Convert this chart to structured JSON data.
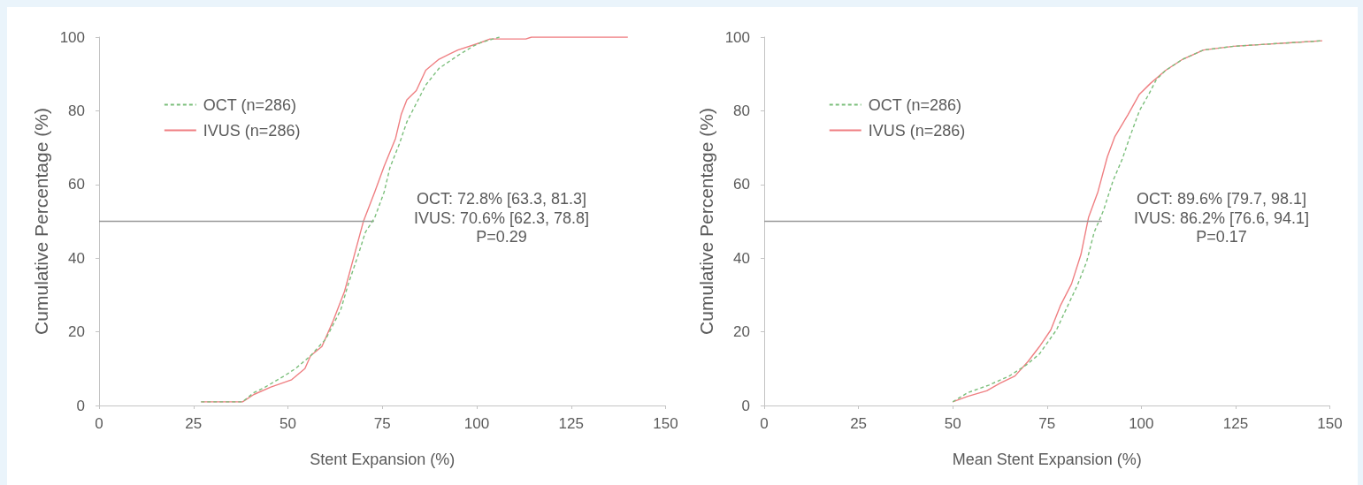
{
  "chart_data": [
    {
      "type": "line",
      "xlabel": "Stent Expansion (%)",
      "ylabel": "Cumulative Percentage (%)",
      "xlim": [
        0,
        150
      ],
      "ylim": [
        0,
        100
      ],
      "xticks": [
        0,
        25,
        50,
        75,
        100,
        125,
        150
      ],
      "yticks": [
        0,
        20,
        40,
        60,
        80,
        100
      ],
      "legend": "top left",
      "marker": "none",
      "annotations": [
        "OCT: 72.8% [63.3, 81.3]",
        "IVUS: 70.6% [62.3, 78.8]",
        "P=0.29"
      ],
      "series": [
        {
          "name": "OCT (n=286)",
          "color": "#7cbf7c",
          "line_style": "dashed",
          "x": [
            27,
            38,
            41,
            44,
            49,
            52,
            56,
            60,
            64,
            66,
            68.5,
            70.5,
            73,
            75.5,
            77,
            79.5,
            81.5,
            84,
            86.5,
            90,
            95,
            99,
            101,
            106
          ],
          "values": [
            1,
            1,
            3.5,
            5,
            8,
            10,
            13.5,
            18,
            26,
            33,
            40.5,
            47,
            51,
            58,
            64.5,
            71,
            77,
            82,
            87,
            91.5,
            95,
            97.5,
            98.5,
            100
          ]
        },
        {
          "name": "IVUS (n=286)",
          "color": "#ef7f82",
          "line_style": "solid",
          "x": [
            27,
            38,
            41,
            45.5,
            51,
            54.5,
            56,
            59,
            62,
            65,
            67.5,
            70,
            73,
            75.5,
            78.5,
            80,
            81.5,
            84,
            86.5,
            90,
            95,
            101,
            103.5,
            113,
            114.5,
            140
          ],
          "values": [
            1,
            1,
            3,
            5,
            7,
            10,
            13.5,
            16,
            23,
            31,
            40.5,
            50,
            58,
            65,
            72.5,
            79,
            83,
            85.5,
            91,
            94,
            96.5,
            98.5,
            99.5,
            99.5,
            100,
            100
          ]
        },
        {
          "color": "#999999",
          "line_style": "solid",
          "x": [
            0,
            72.8
          ],
          "values": [
            50,
            50
          ]
        }
      ]
    },
    {
      "type": "line",
      "xlabel": "Mean Stent Expansion (%)",
      "ylabel": "Cumulative Percentage (%)",
      "xlim": [
        0,
        150
      ],
      "ylim": [
        0,
        100
      ],
      "xticks": [
        0,
        25,
        50,
        75,
        100,
        125,
        150
      ],
      "yticks": [
        0,
        20,
        40,
        60,
        80,
        100
      ],
      "legend": "top left",
      "marker": "none",
      "annotations": [
        "OCT: 89.6% [79.7, 98.1]",
        "IVUS: 86.2% [76.6, 94.1]",
        "P=0.17"
      ],
      "series": [
        {
          "name": "OCT (n=286)",
          "color": "#7cbf7c",
          "line_style": "dashed",
          "x": [
            50,
            54,
            59.5,
            65,
            69.5,
            73,
            77.5,
            80,
            83,
            85.5,
            87.5,
            90,
            92.5,
            95,
            97,
            99.5,
            102,
            104,
            106.5,
            111,
            116.5,
            124.5,
            132,
            140,
            148
          ],
          "values": [
            1,
            3.5,
            5.5,
            8,
            11,
            14,
            20.5,
            26,
            32.5,
            39,
            47,
            53,
            61,
            67,
            73,
            80,
            84.5,
            88.5,
            91,
            94,
            96.5,
            97.5,
            98,
            98.5,
            99
          ]
        },
        {
          "name": "IVUS (n=286)",
          "color": "#ef7f82",
          "line_style": "solid",
          "x": [
            50,
            54,
            59,
            62.5,
            66.5,
            70,
            73,
            76,
            78.5,
            81.5,
            84,
            86,
            88.5,
            91,
            93,
            96.5,
            99.5,
            102.5,
            106.5,
            111,
            116.5,
            124.5,
            132,
            140,
            148
          ],
          "values": [
            1,
            2.5,
            4,
            6,
            8,
            12,
            16,
            20.5,
            27,
            33,
            41,
            51,
            58,
            67.5,
            73,
            79,
            84.5,
            87.5,
            91,
            94,
            96.5,
            97.5,
            98,
            98.5,
            99
          ]
        },
        {
          "color": "#999999",
          "line_style": "solid",
          "x": [
            0,
            89.6
          ],
          "values": [
            50,
            50
          ]
        }
      ]
    }
  ]
}
